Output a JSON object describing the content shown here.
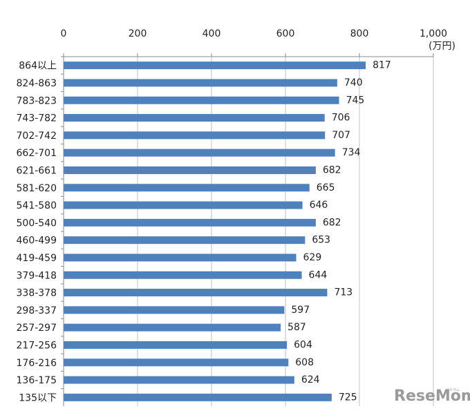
{
  "chart_data": {
    "type": "bar",
    "orientation": "horizontal",
    "categories": [
      "864以上",
      "824-863",
      "783-823",
      "743-782",
      "702-742",
      "662-701",
      "621-661",
      "581-620",
      "541-580",
      "500-540",
      "460-499",
      "419-459",
      "379-418",
      "338-378",
      "298-337",
      "257-297",
      "217-256",
      "176-216",
      "136-175",
      "135以下"
    ],
    "values": [
      817,
      740,
      745,
      706,
      707,
      734,
      682,
      665,
      646,
      682,
      653,
      629,
      644,
      713,
      597,
      587,
      604,
      608,
      624,
      725
    ],
    "data_labels": [
      "817",
      "740",
      "745",
      "706",
      "707",
      "734",
      "682",
      "665",
      "646",
      "682",
      "653",
      "629",
      "644",
      "713",
      "597",
      "587",
      "604",
      "608",
      "624",
      "725"
    ],
    "xlim": [
      0,
      1000
    ],
    "x_ticks": [
      0,
      200,
      400,
      600,
      800,
      1000
    ],
    "x_tick_labels": [
      "0",
      "200",
      "400",
      "600",
      "800",
      "1,000"
    ],
    "x_unit": "(万円)",
    "axis_position": "top",
    "grid": true,
    "bar_color": "#4F81BD"
  },
  "watermark": {
    "text": "ReseMom",
    "subtext": "リセマム"
  }
}
